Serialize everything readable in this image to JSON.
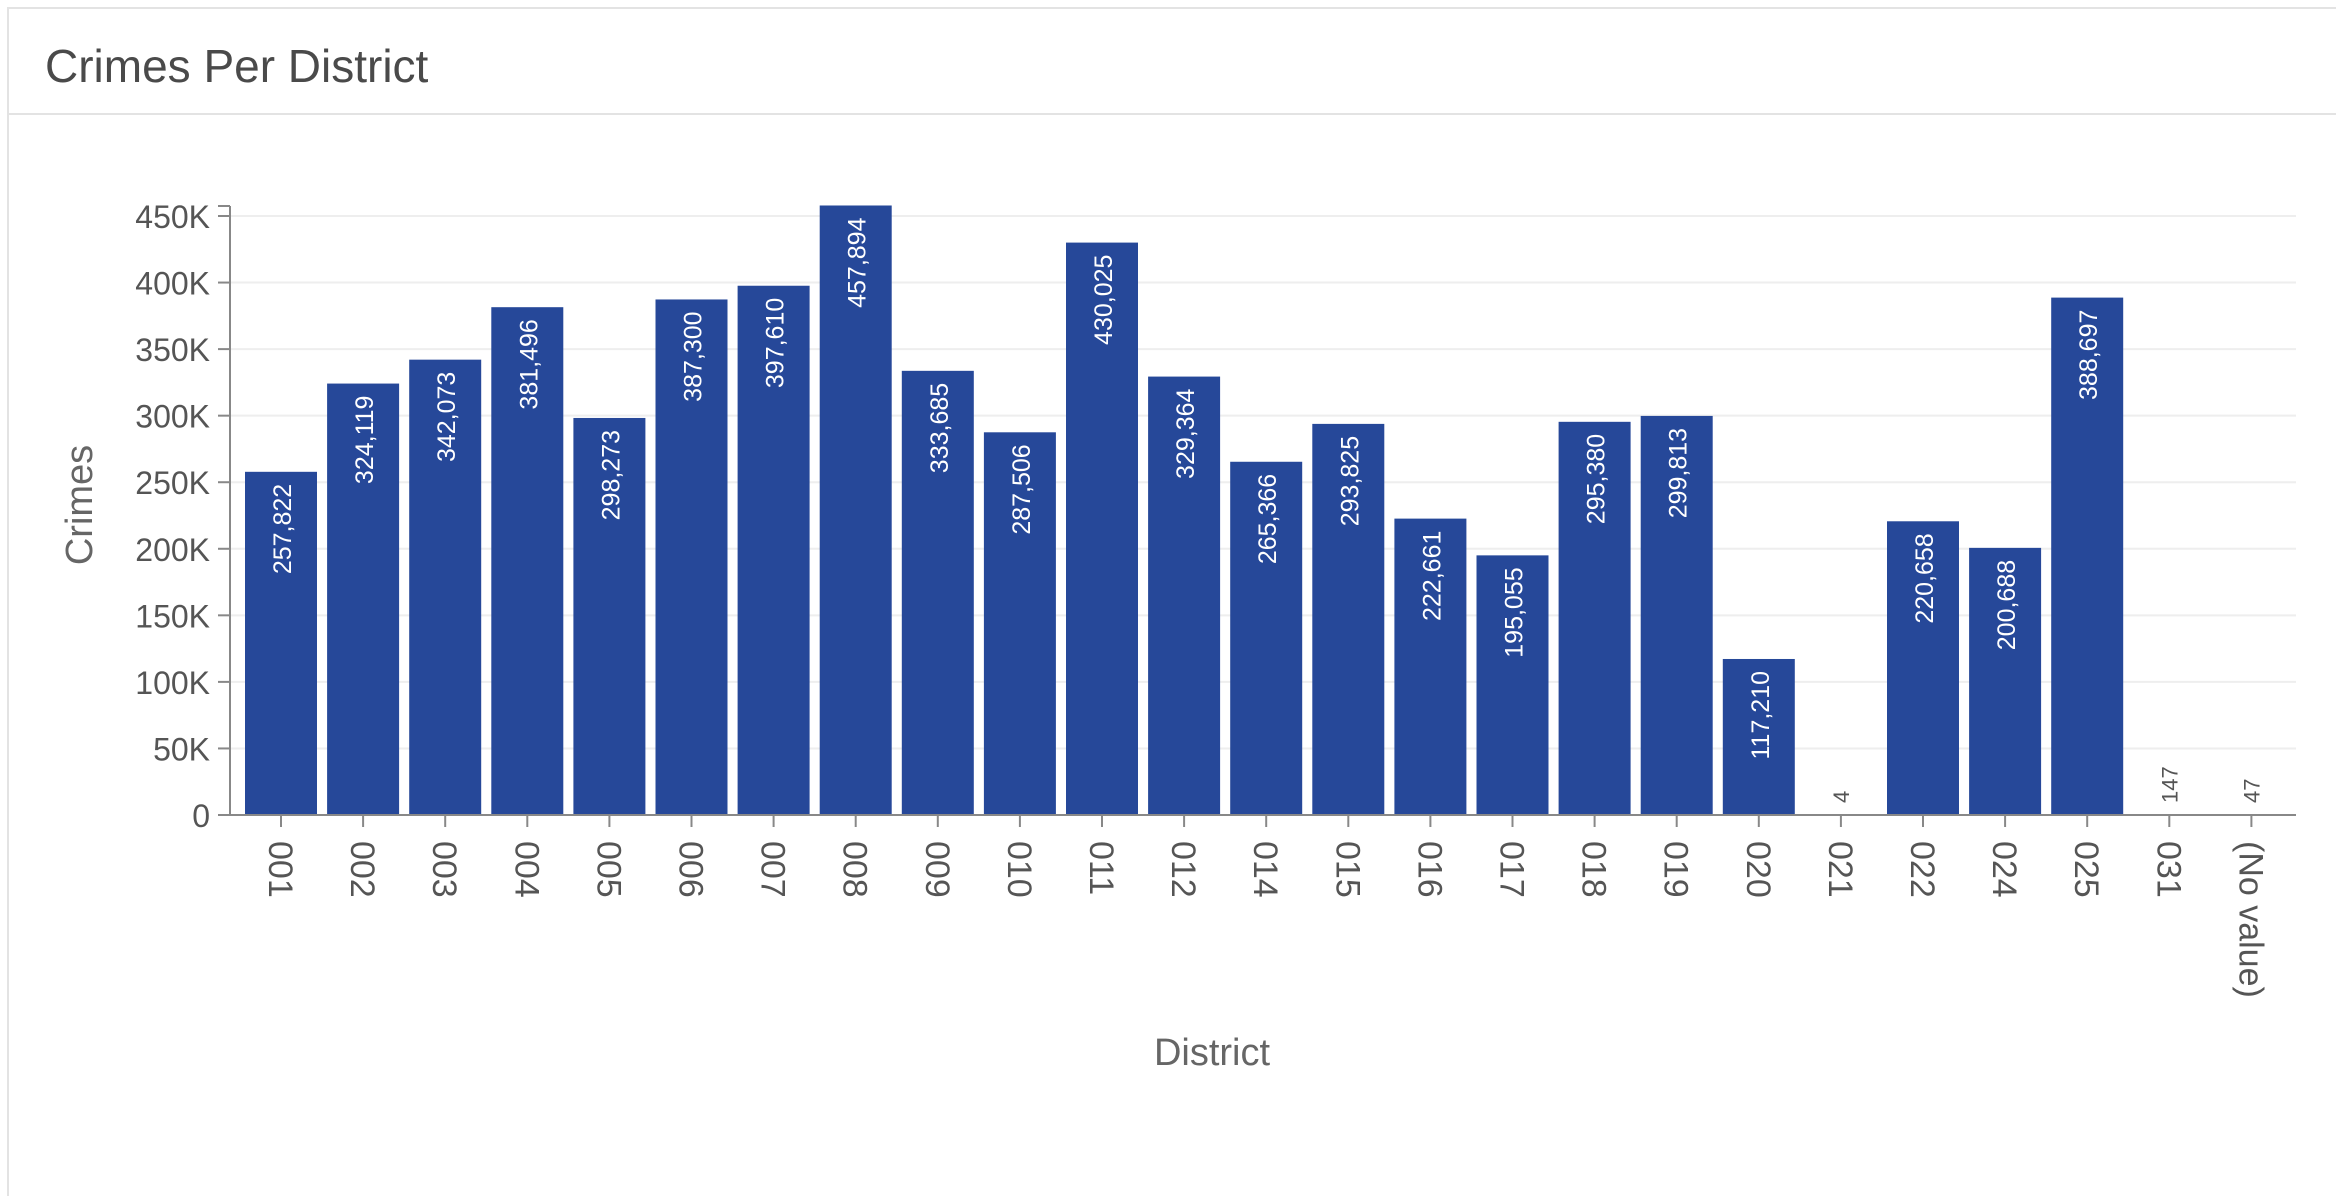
{
  "panel": {
    "title": "Crimes Per District"
  },
  "colors": {
    "bar": "#264899",
    "grid": "#eeeeee",
    "axis": "#888888",
    "label_inside": "#ffffff",
    "label_outside": "#555555",
    "text": "#555555"
  },
  "chart_data": {
    "type": "bar",
    "title": "Crimes Per District",
    "xlabel": "District",
    "ylabel": "Crimes",
    "ylim": [
      0,
      450000
    ],
    "y_ticks": [
      0,
      50000,
      100000,
      150000,
      200000,
      250000,
      300000,
      350000,
      400000,
      450000
    ],
    "y_tick_labels": [
      "0",
      "50K",
      "100K",
      "150K",
      "200K",
      "250K",
      "300K",
      "350K",
      "400K",
      "450K"
    ],
    "grid": true,
    "categories": [
      "001",
      "002",
      "003",
      "004",
      "005",
      "006",
      "007",
      "008",
      "009",
      "010",
      "011",
      "012",
      "014",
      "015",
      "016",
      "017",
      "018",
      "019",
      "020",
      "021",
      "022",
      "024",
      "025",
      "031",
      "(No value)"
    ],
    "values": [
      257822,
      324119,
      342073,
      381496,
      298273,
      387300,
      397610,
      457894,
      333685,
      287506,
      430025,
      329364,
      265366,
      293825,
      222661,
      195055,
      295380,
      299813,
      117210,
      4,
      220658,
      200688,
      388697,
      147,
      47
    ],
    "value_labels": [
      "257,822",
      "324,119",
      "342,073",
      "381,496",
      "298,273",
      "387,300",
      "397,610",
      "457,894",
      "333,685",
      "287,506",
      "430,025",
      "329,364",
      "265,366",
      "293,825",
      "222,661",
      "195,055",
      "295,380",
      "299,813",
      "117,210",
      "4",
      "220,658",
      "200,688",
      "388,697",
      "147",
      "47"
    ]
  }
}
